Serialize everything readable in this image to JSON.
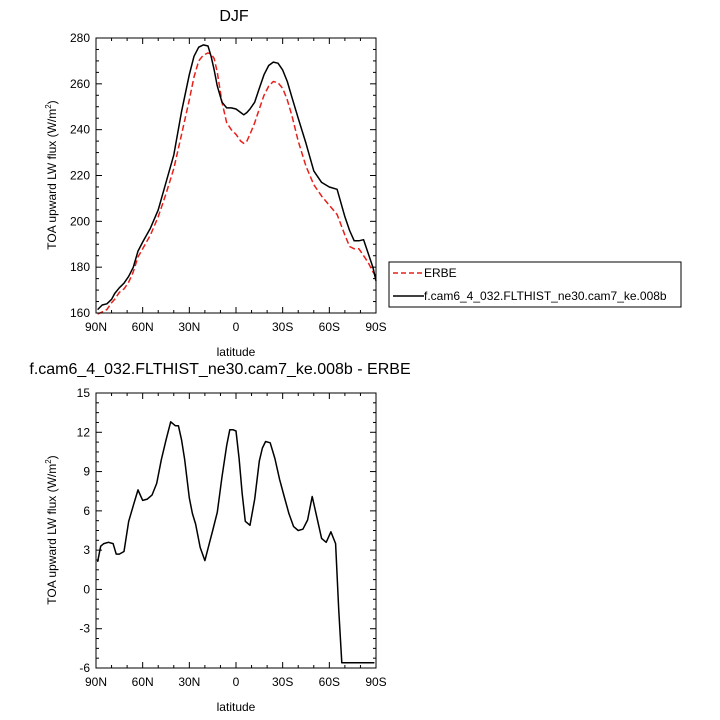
{
  "chart_data": [
    {
      "type": "line",
      "title": "DJF",
      "xlabel": "latitude",
      "ylabel": "TOA upward LW flux (W/m²)",
      "ylabel_main": "TOA upward LW flux (W/m",
      "ylabel_sup": "2",
      "ylabel_close": ")",
      "xlim": [
        -90,
        90
      ],
      "ylim": [
        160,
        280
      ],
      "xticks": [
        {
          "value": -90,
          "label": "90N"
        },
        {
          "value": -60,
          "label": "60N"
        },
        {
          "value": -30,
          "label": "30N"
        },
        {
          "value": 0,
          "label": "0"
        },
        {
          "value": 30,
          "label": "30S"
        },
        {
          "value": 60,
          "label": "60S"
        },
        {
          "value": 90,
          "label": "90S"
        }
      ],
      "yticks": [
        160,
        180,
        200,
        220,
        240,
        260,
        280
      ],
      "legend": "outside-right",
      "series": [
        {
          "name": "ERBE",
          "color": "#e8201a",
          "dash": "dashed",
          "x": [
            -89,
            -86,
            -83,
            -80,
            -78,
            -75,
            -72,
            -69,
            -66,
            -63,
            -60,
            -55,
            -50,
            -45,
            -40,
            -35,
            -30,
            -27,
            -24,
            -21,
            -18,
            -16,
            -14,
            -12,
            -9,
            -6,
            -3,
            0,
            3,
            5,
            7,
            9,
            12,
            15,
            18,
            21,
            24,
            27,
            30,
            33,
            36,
            40,
            45,
            50,
            55,
            60,
            65,
            70,
            73,
            76,
            79,
            82,
            85,
            88,
            90
          ],
          "values": [
            159.5,
            160.5,
            161.5,
            164.5,
            166,
            169,
            170.5,
            173.5,
            178,
            184.5,
            188,
            194,
            202,
            212,
            223,
            238,
            253,
            263,
            270,
            272.5,
            273.5,
            273,
            271,
            265,
            252,
            243,
            240,
            238,
            235,
            234,
            235,
            238,
            243,
            249,
            255,
            259,
            261,
            260.5,
            258,
            253,
            246,
            235,
            224,
            216,
            211,
            207,
            203,
            194,
            189,
            188,
            188,
            185,
            182,
            178,
            176
          ]
        },
        {
          "name": "f.cam6_4_032.FLTHIST_ne30.cam7_ke.008b",
          "color": "#000000",
          "dash": "solid",
          "x": [
            -89,
            -86,
            -83,
            -80,
            -78,
            -75,
            -72,
            -69,
            -66,
            -63,
            -60,
            -55,
            -50,
            -45,
            -40,
            -35,
            -30,
            -27,
            -24,
            -21,
            -18,
            -16,
            -14,
            -12,
            -9,
            -6,
            -3,
            0,
            3,
            5,
            7,
            9,
            12,
            15,
            18,
            21,
            24,
            27,
            30,
            33,
            36,
            40,
            45,
            50,
            55,
            60,
            65,
            70,
            73,
            76,
            79,
            82,
            85,
            88,
            90
          ],
          "values": [
            161.5,
            163.5,
            164,
            166,
            168.5,
            171,
            173,
            176,
            180,
            187,
            191,
            197,
            205,
            217,
            229,
            248,
            264,
            272,
            276,
            277,
            276.5,
            272,
            266,
            259,
            252,
            249.5,
            249.5,
            249,
            247.5,
            246.5,
            247.5,
            249,
            252,
            258,
            264,
            268,
            269.5,
            269,
            266,
            261,
            254,
            245,
            234,
            222,
            217,
            215,
            214,
            202,
            196,
            191.5,
            191.5,
            192,
            186,
            180,
            174
          ]
        }
      ]
    },
    {
      "type": "line",
      "title": "f.cam6_4_032.FLTHIST_ne30.cam7_ke.008b - ERBE",
      "xlabel": "latitude",
      "ylabel": "TOA upward LW flux (W/m²)",
      "ylabel_main": "TOA upward LW flux (W/m",
      "ylabel_sup": "2",
      "ylabel_close": ")",
      "xlim": [
        -90,
        90
      ],
      "ylim": [
        -6,
        15
      ],
      "xticks": [
        {
          "value": -90,
          "label": "90N"
        },
        {
          "value": -60,
          "label": "60N"
        },
        {
          "value": -30,
          "label": "30N"
        },
        {
          "value": 0,
          "label": "0"
        },
        {
          "value": 30,
          "label": "30S"
        },
        {
          "value": 60,
          "label": "60S"
        },
        {
          "value": 90,
          "label": "90S"
        }
      ],
      "yticks": [
        -6,
        -3,
        0,
        3,
        6,
        9,
        12,
        15
      ],
      "series": [
        {
          "name": "difference",
          "color": "#000000",
          "dash": "solid",
          "x": [
            -89,
            -87,
            -85,
            -82,
            -79,
            -77,
            -75,
            -72,
            -69,
            -66,
            -63,
            -60,
            -57,
            -54,
            -51,
            -48,
            -45,
            -42,
            -39,
            -37,
            -35,
            -33,
            -30,
            -28,
            -26,
            -23,
            -20,
            -17,
            -15,
            -12,
            -9,
            -6,
            -4,
            -2,
            0,
            2,
            4,
            6,
            9,
            12,
            15,
            17,
            19,
            22,
            25,
            28,
            31,
            34,
            37,
            40,
            43,
            46,
            49,
            52,
            55,
            58,
            61,
            64,
            66,
            68,
            70,
            73,
            76,
            79,
            82,
            85,
            87,
            89
          ],
          "values": [
            2.1,
            3.3,
            3.5,
            3.6,
            3.5,
            2.7,
            2.7,
            2.9,
            5.2,
            6.4,
            7.6,
            6.8,
            6.9,
            7.2,
            8.1,
            9.9,
            11.4,
            12.8,
            12.5,
            12.5,
            11.4,
            9.9,
            7.0,
            5.8,
            5.0,
            3.2,
            2.2,
            3.6,
            4.5,
            5.9,
            8.6,
            11.0,
            12.2,
            12.2,
            12.1,
            10.0,
            7.3,
            5.2,
            4.9,
            6.9,
            9.8,
            10.8,
            11.3,
            11.2,
            10.0,
            8.4,
            7.1,
            5.8,
            4.8,
            4.5,
            4.6,
            5.3,
            7.1,
            5.5,
            3.9,
            3.6,
            4.4,
            3.5,
            -1.5,
            -5.6,
            -5.6,
            -5.6,
            -5.6,
            -5.6,
            -5.6,
            -5.6,
            -5.6,
            -5.6
          ]
        }
      ]
    }
  ]
}
